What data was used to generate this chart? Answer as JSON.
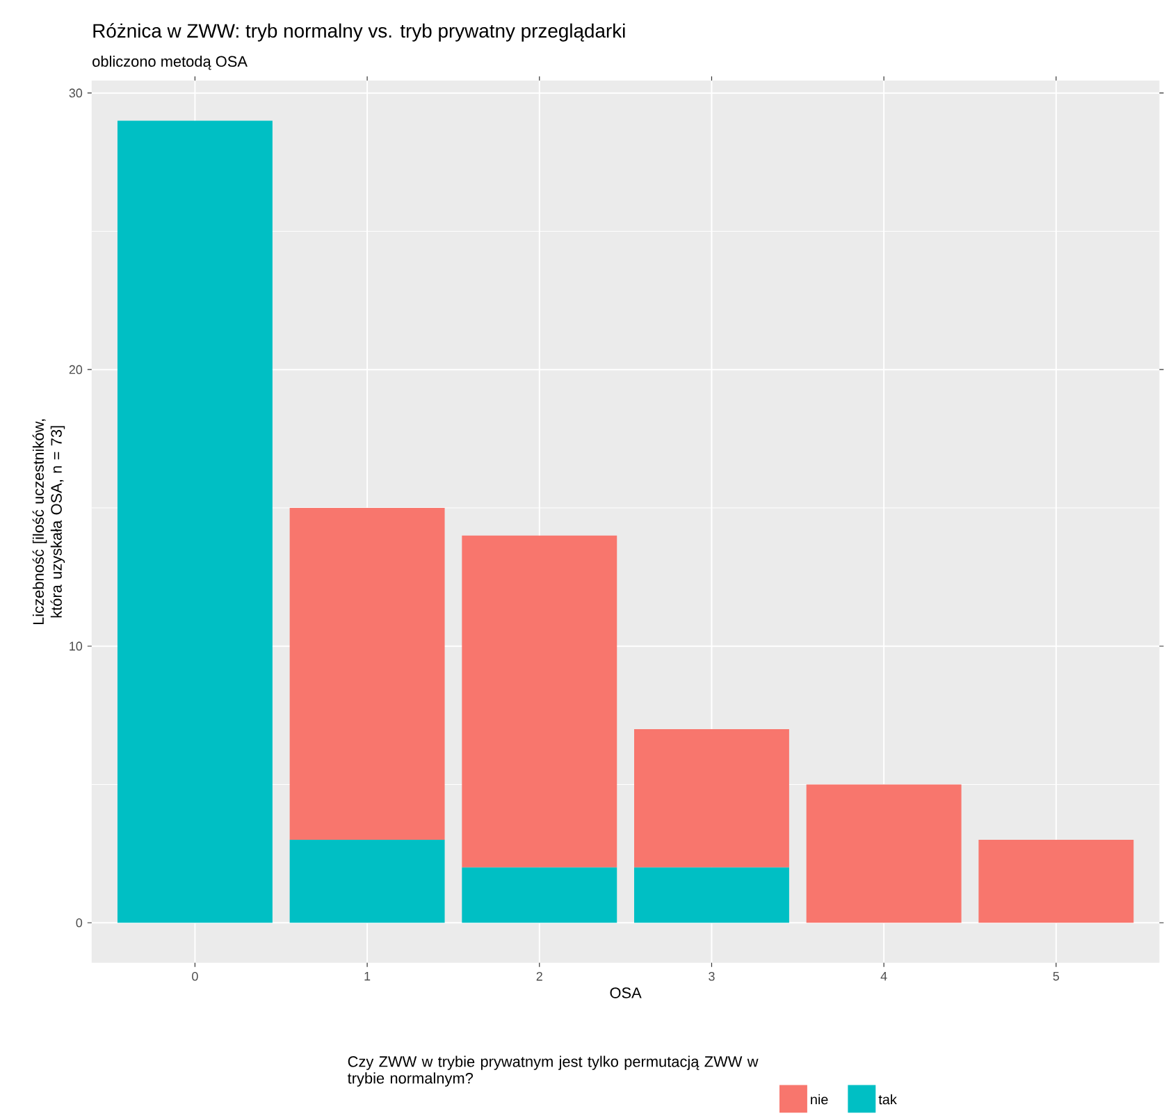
{
  "chart_data": {
    "type": "bar",
    "title": "Różnica w ZWW: tryb normalny vs. tryb prywatny przeglądarki",
    "subtitle": "obliczono metodą OSA",
    "xlabel": "OSA",
    "ylabel": "Liczebność [ilość uczestników, która uzyskała OSA, n = 73]",
    "legend_title": "Czy ZWW w trybie prywatnym jest tylko permutacją ZWW w trybie normalnym?",
    "categories": [
      "0",
      "1",
      "2",
      "3",
      "4",
      "5"
    ],
    "stacked": true,
    "series": [
      {
        "name": "tak",
        "color": "#00bfc4",
        "values": [
          29,
          3,
          2,
          2,
          0,
          0
        ]
      },
      {
        "name": "nie",
        "color": "#f8766d",
        "values": [
          0,
          12,
          12,
          5,
          5,
          3
        ]
      }
    ],
    "ylim": [
      -1.45,
      30.45
    ],
    "yticks": [
      0,
      10,
      20,
      30
    ],
    "grid": true,
    "legend": "bottom"
  }
}
